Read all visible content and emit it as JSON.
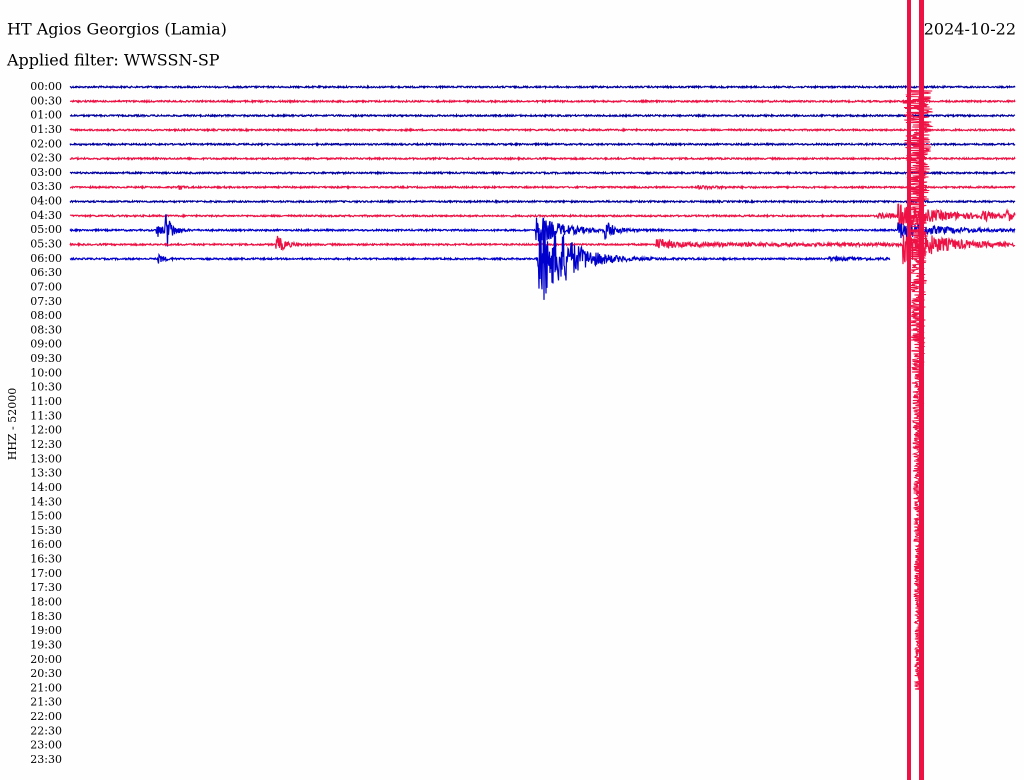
{
  "header": {
    "station": "HT Agios Georgios (Lamia)",
    "filter": "Applied filter: WWSSN-SP",
    "date": "2024-10-22"
  },
  "axis_label": "HHZ - 52000",
  "row_labels": [
    "00:00",
    "00:30",
    "01:00",
    "01:30",
    "02:00",
    "02:30",
    "03:00",
    "03:30",
    "04:00",
    "04:30",
    "05:00",
    "05:30",
    "06:00",
    "06:30",
    "07:00",
    "07:30",
    "08:00",
    "08:30",
    "09:00",
    "09:30",
    "10:00",
    "10:30",
    "11:00",
    "11:30",
    "12:00",
    "12:30",
    "13:00",
    "13:30",
    "14:00",
    "14:30",
    "15:00",
    "15:30",
    "16:00",
    "16:30",
    "17:00",
    "17:30",
    "18:00",
    "18:30",
    "19:00",
    "19:30",
    "20:00",
    "20:30",
    "21:00",
    "21:30",
    "22:00",
    "22:30",
    "23:00",
    "23:30"
  ],
  "trace_colors": [
    "#0000a0",
    "#ee1144",
    "#0000a0",
    "#ee1144",
    "#0000a0",
    "#ee1144",
    "#0000a0",
    "#ee1144",
    "#0000a0",
    "#ee1144",
    "#0000cc",
    "#ee1144",
    "#0000cc"
  ]
}
